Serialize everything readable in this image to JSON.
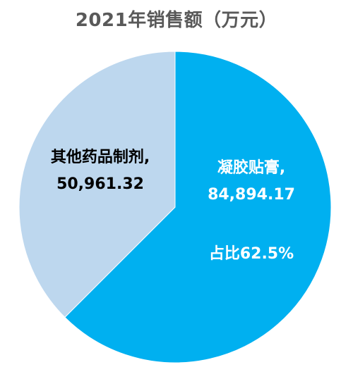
{
  "chart_data": {
    "type": "pie",
    "title": "2021年销售额（万元）",
    "slices": [
      {
        "name": "凝胶贴膏",
        "value_text": "84,894.17",
        "value": 84894.17,
        "share_text": "占比62.5%",
        "color": "#00B0F0",
        "label_color": "#FFFFFF"
      },
      {
        "name": "其他药品制剂",
        "value_text": "50,961.32",
        "value": 50961.32,
        "color": "#BDD7EE",
        "label_color": "#000000"
      }
    ]
  }
}
